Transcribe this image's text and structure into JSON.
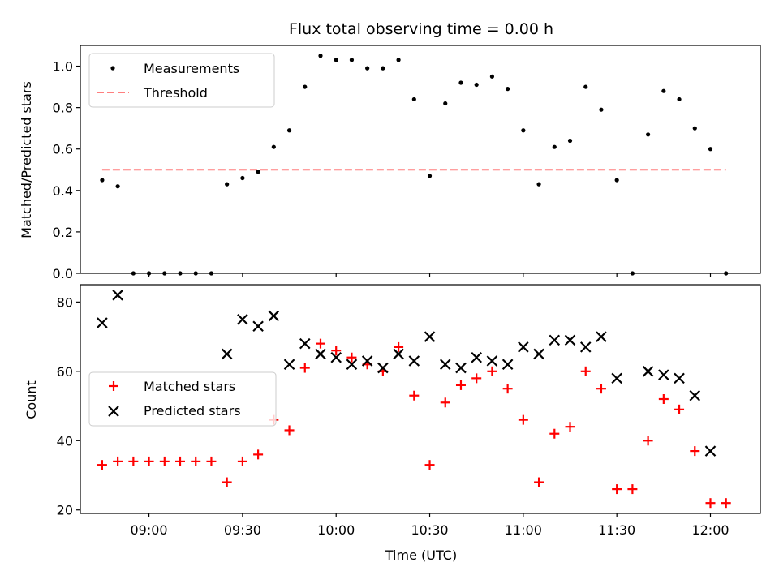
{
  "chart_data": [
    {
      "type": "scatter",
      "title": "Flux total observing time = 0.00 h",
      "xlabel": "",
      "ylabel": "Matched/Predicted stars",
      "ylim": [
        0,
        1.1
      ],
      "yticks": [
        "0.0",
        "0.2",
        "0.4",
        "0.6",
        "0.8",
        "1.0"
      ],
      "legend": {
        "placement": "top-left",
        "entries": [
          "Measurements",
          "Threshold"
        ]
      },
      "colors": {
        "measurements": "#000000",
        "threshold": "#ff7f7f"
      },
      "threshold": {
        "value": 0.5,
        "x_start": "08:45",
        "x_end": "12:05"
      },
      "series": [
        {
          "name": "Measurements",
          "x": [
            "08:45",
            "08:50",
            "08:55",
            "09:00",
            "09:05",
            "09:10",
            "09:15",
            "09:20",
            "09:25",
            "09:30",
            "09:35",
            "09:40",
            "09:45",
            "09:50",
            "09:55",
            "10:00",
            "10:05",
            "10:10",
            "10:15",
            "10:20",
            "10:25",
            "10:30",
            "10:35",
            "10:40",
            "10:45",
            "10:50",
            "10:55",
            "11:00",
            "11:05",
            "11:10",
            "11:15",
            "11:20",
            "11:25",
            "11:30",
            "11:35",
            "11:40",
            "11:45",
            "11:50",
            "11:55",
            "12:00",
            "12:05"
          ],
          "y": [
            0.45,
            0.42,
            0.0,
            0.0,
            0.0,
            0.0,
            0.0,
            0.0,
            0.43,
            0.46,
            0.49,
            0.61,
            0.69,
            0.9,
            1.05,
            1.03,
            1.03,
            0.99,
            0.99,
            1.03,
            0.84,
            0.47,
            0.82,
            0.92,
            0.91,
            0.95,
            0.89,
            0.69,
            0.43,
            0.61,
            0.64,
            0.9,
            0.79,
            0.45,
            0.0,
            0.67,
            0.88,
            0.84,
            0.7,
            0.6,
            0.0
          ]
        }
      ]
    },
    {
      "type": "scatter",
      "title": "",
      "xlabel": "Time (UTC)",
      "ylabel": "Count",
      "ylim": [
        19,
        85
      ],
      "yticks": [
        "20",
        "40",
        "60",
        "80"
      ],
      "xticks": [
        "09:00",
        "09:30",
        "10:00",
        "10:30",
        "11:00",
        "11:30",
        "12:00"
      ],
      "xlim": [
        "08:38",
        "12:16"
      ],
      "legend": {
        "placement": "center-left",
        "entries": [
          "Matched stars",
          "Predicted stars"
        ]
      },
      "colors": {
        "matched": "#ff0000",
        "predicted": "#000000"
      },
      "series": [
        {
          "name": "Matched stars",
          "x": [
            "08:45",
            "08:50",
            "08:55",
            "09:00",
            "09:05",
            "09:10",
            "09:15",
            "09:20",
            "09:25",
            "09:30",
            "09:35",
            "09:40",
            "09:45",
            "09:50",
            "09:55",
            "10:00",
            "10:05",
            "10:10",
            "10:15",
            "10:20",
            "10:25",
            "10:30",
            "10:35",
            "10:40",
            "10:45",
            "10:50",
            "10:55",
            "11:00",
            "11:05",
            "11:10",
            "11:15",
            "11:20",
            "11:25",
            "11:30",
            "11:35",
            "11:40",
            "11:45",
            "11:50",
            "11:55",
            "12:00",
            "12:05"
          ],
          "y": [
            33,
            34,
            34,
            34,
            34,
            34,
            34,
            34,
            28,
            34,
            36,
            46,
            43,
            61,
            68,
            66,
            64,
            62,
            60,
            67,
            53,
            33,
            51,
            56,
            58,
            60,
            55,
            46,
            28,
            42,
            44,
            60,
            55,
            26,
            26,
            40,
            52,
            49,
            37,
            22,
            22
          ]
        },
        {
          "name": "Predicted stars",
          "x": [
            "08:45",
            "08:50",
            "09:25",
            "09:30",
            "09:35",
            "09:40",
            "09:45",
            "09:50",
            "09:55",
            "10:00",
            "10:05",
            "10:10",
            "10:15",
            "10:20",
            "10:25",
            "10:30",
            "10:35",
            "10:40",
            "10:45",
            "10:50",
            "10:55",
            "11:00",
            "11:05",
            "11:10",
            "11:15",
            "11:20",
            "11:25",
            "11:30",
            "11:40",
            "11:45",
            "11:50",
            "11:55",
            "12:00"
          ],
          "y": [
            74,
            82,
            65,
            75,
            73,
            76,
            62,
            68,
            65,
            64,
            62,
            63,
            61,
            65,
            63,
            70,
            62,
            61,
            64,
            63,
            62,
            67,
            65,
            69,
            69,
            67,
            70,
            58,
            60,
            59,
            58,
            53,
            37
          ]
        }
      ]
    }
  ]
}
